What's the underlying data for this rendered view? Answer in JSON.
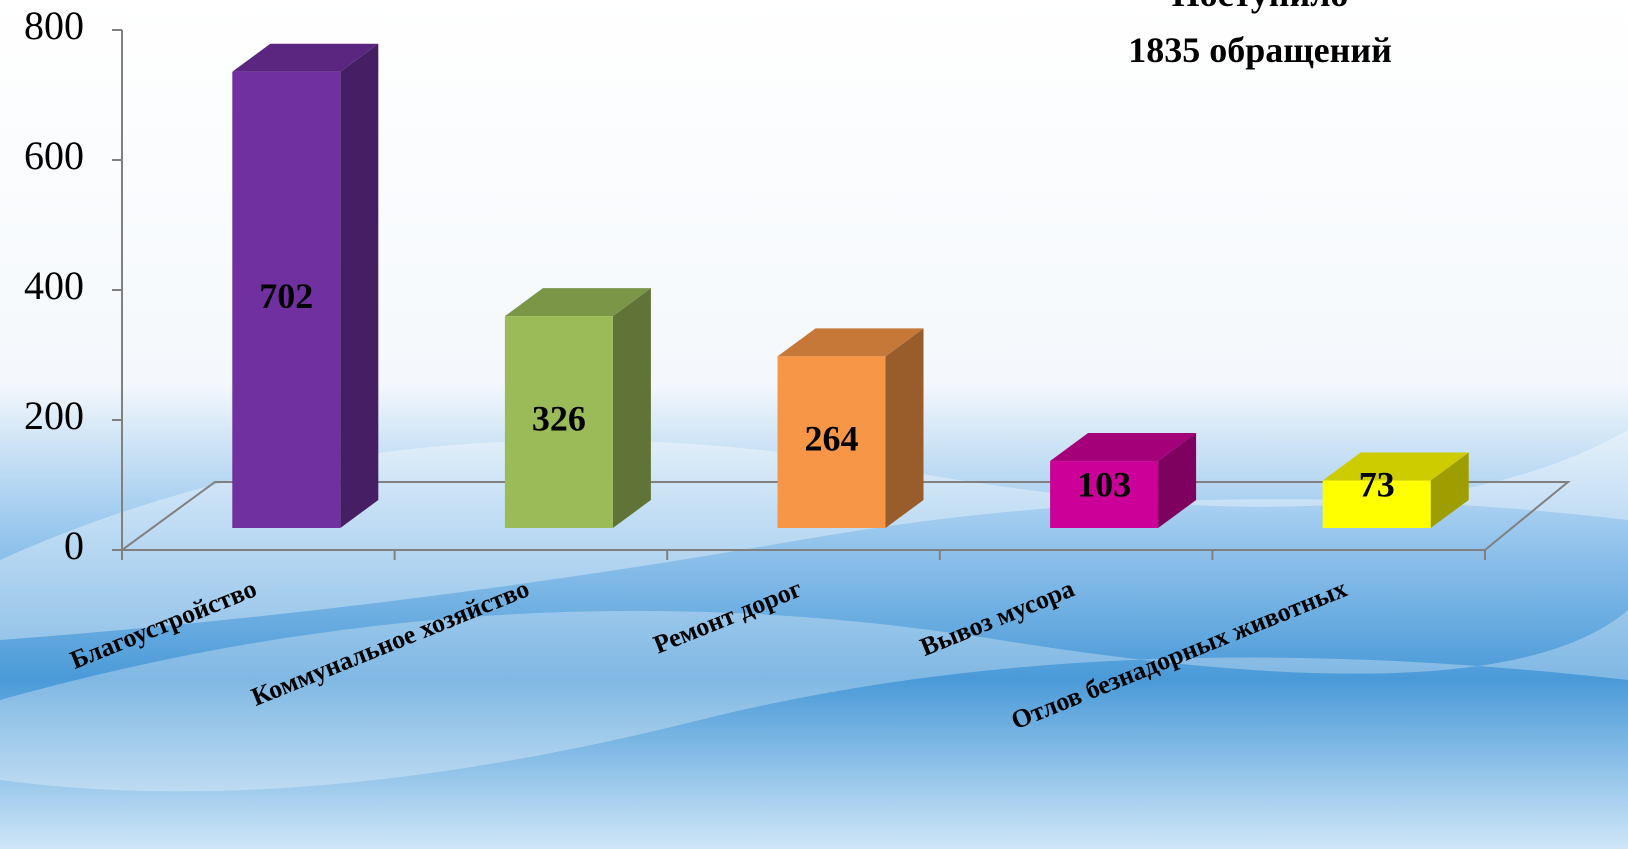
{
  "chart_data": {
    "type": "bar3d",
    "title": [
      "Поступило",
      "1835 обращений"
    ],
    "categories": [
      "Благоустройство",
      "Коммунальное хозяйство",
      "Ремонт дорог",
      "Вывоз мусора",
      "Отлов безнадорных животных"
    ],
    "values": [
      702,
      326,
      264,
      103,
      73
    ],
    "colors": [
      "#7030a0",
      "#9bbb59",
      "#f79646",
      "#cc0099",
      "#ffff00"
    ],
    "ylim": [
      0,
      800
    ],
    "yticks": [
      0,
      200,
      400,
      600,
      800
    ]
  }
}
